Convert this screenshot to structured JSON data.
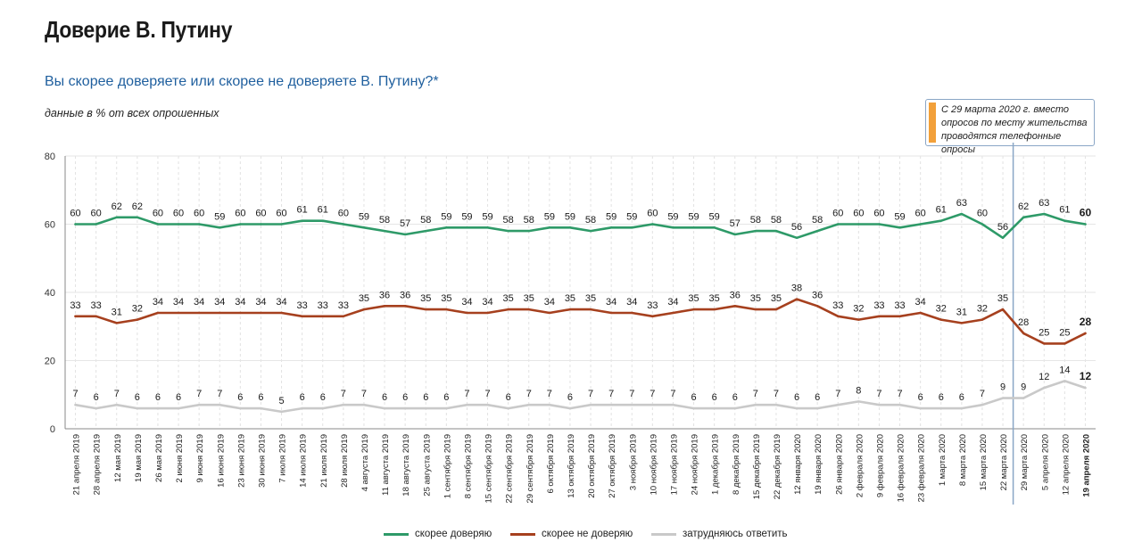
{
  "title": "Доверие В. Путину",
  "subtitle": "Вы скорее доверяете или скорее не доверяете В. Путину?*",
  "note": "данные в % от всех опрошенных",
  "callout": "С 29 марта 2020 г. вместо опросов по месту жительства проводятся телефонные опросы",
  "colors": {
    "trust": "#2e9a68",
    "distrust": "#a6401e",
    "undecided": "#c9c9c9",
    "callout_accent": "#f2a03a",
    "divider": "#8aa6c6"
  },
  "legend": [
    {
      "label": "скорее доверяю",
      "color": "#2e9a68"
    },
    {
      "label": "скорее не доверяю",
      "color": "#a6401e"
    },
    {
      "label": "затрудняюсь ответить",
      "color": "#c9c9c9"
    }
  ],
  "chart_data": {
    "type": "line",
    "ylim": [
      0,
      80
    ],
    "yticks": [
      0,
      20,
      40,
      60,
      80
    ],
    "grid": true,
    "divider_after_category": "22 марта 2020",
    "categories": [
      "21 апреля 2019",
      "28 апреля 2019",
      "12 мая 2019",
      "19 мая 2019",
      "26 мая 2019",
      "2 июня 2019",
      "9 июня 2019",
      "16 июня 2019",
      "23 июня 2019",
      "30 июня 2019",
      "7 июля 2019",
      "14 июля 2019",
      "21 июля 2019",
      "28 июля 2019",
      "4 августа 2019",
      "11 августа 2019",
      "18 августа 2019",
      "25 августа 2019",
      "1 сентября 2019",
      "8 сентября 2019",
      "15 сентября 2019",
      "22 сентября 2019",
      "29 сентября 2019",
      "6 октября 2019",
      "13 октября 2019",
      "20 октября 2019",
      "27 октября 2019",
      "3 ноября 2019",
      "10 ноября 2019",
      "17 ноября 2019",
      "24 ноября 2019",
      "1 декабря 2019",
      "8 декабря 2019",
      "15 декабря 2019",
      "22 декабря 2019",
      "12 января 2020",
      "19 января 2020",
      "26 января 2020",
      "2 февраля 2020",
      "9 февраля 2020",
      "16 февраля 2020",
      "23 февраля 2020",
      "1 марта 2020",
      "8 марта 2020",
      "15 марта 2020",
      "22 марта 2020",
      "29 марта 2020",
      "5 апреля 2020",
      "12 апреля 2020",
      "19 апреля 2020"
    ],
    "series": [
      {
        "name": "скорее доверяю",
        "values": [
          60,
          60,
          62,
          62,
          60,
          60,
          60,
          59,
          60,
          60,
          60,
          61,
          61,
          60,
          59,
          58,
          57,
          58,
          59,
          59,
          59,
          58,
          58,
          59,
          59,
          58,
          59,
          59,
          60,
          59,
          59,
          59,
          57,
          58,
          58,
          56,
          58,
          60,
          60,
          60,
          59,
          60,
          61,
          63,
          60,
          56,
          62,
          63,
          61,
          60
        ]
      },
      {
        "name": "скорее не доверяю",
        "values": [
          33,
          33,
          31,
          32,
          34,
          34,
          34,
          34,
          34,
          34,
          34,
          33,
          33,
          33,
          35,
          36,
          36,
          35,
          35,
          34,
          34,
          35,
          35,
          34,
          35,
          35,
          34,
          34,
          33,
          34,
          35,
          35,
          36,
          35,
          35,
          38,
          36,
          33,
          32,
          33,
          33,
          34,
          32,
          31,
          32,
          35,
          28,
          25,
          25,
          28
        ]
      },
      {
        "name": "затрудняюсь ответить",
        "values": [
          7,
          6,
          7,
          6,
          6,
          6,
          7,
          7,
          6,
          6,
          5,
          6,
          6,
          7,
          7,
          6,
          6,
          6,
          6,
          7,
          7,
          6,
          7,
          7,
          6,
          7,
          7,
          7,
          7,
          7,
          6,
          6,
          6,
          7,
          7,
          6,
          6,
          7,
          8,
          7,
          7,
          6,
          6,
          6,
          7,
          9,
          9,
          12,
          14,
          12
        ]
      }
    ]
  }
}
